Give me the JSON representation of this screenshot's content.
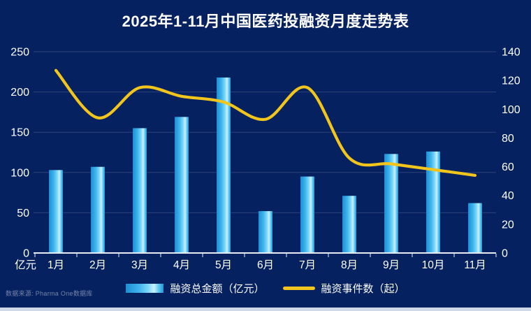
{
  "title": "2025年1-11月中国医药投融资月度走势表",
  "source": "数据来源:  Pharma One数据库",
  "legend": {
    "bars": "融资总金额（亿元）",
    "line": "融资事件数（起）"
  },
  "chart_data": {
    "type": "bar+line",
    "title": "2025年1-11月中国医药投融资月度走势表",
    "categories": [
      "1月",
      "2月",
      "3月",
      "4月",
      "5月",
      "6月",
      "7月",
      "8月",
      "9月",
      "10月",
      "11月"
    ],
    "series": [
      {
        "name": "融资总金额（亿元）",
        "type": "bar",
        "axis": "left",
        "values": [
          103,
          107,
          155,
          169,
          218,
          52,
          95,
          71,
          123,
          126,
          62
        ]
      },
      {
        "name": "融资事件数（起）",
        "type": "line",
        "axis": "right",
        "values": [
          127,
          94,
          115,
          109,
          105,
          93,
          115,
          66,
          62,
          58,
          54
        ]
      }
    ],
    "left_axis": {
      "unit": "亿元",
      "range": [
        0,
        250
      ],
      "ticks": [
        0,
        50,
        100,
        150,
        200,
        250
      ]
    },
    "right_axis": {
      "unit": "起",
      "range": [
        0,
        140
      ],
      "ticks": [
        0,
        20,
        40,
        60,
        80,
        100,
        120,
        140
      ]
    },
    "grid": true,
    "legend_position": "bottom",
    "colors": {
      "background": "#062160",
      "bar": "#45bdf1",
      "bar_highlight": "#c9f1fd",
      "line": "#f2c51c",
      "text": "#ffffff",
      "grid": "#2e4379",
      "axis_line": "#e6ebf4",
      "source_text": "#7585a8",
      "bottom_strip": "#cfd9e7"
    }
  }
}
